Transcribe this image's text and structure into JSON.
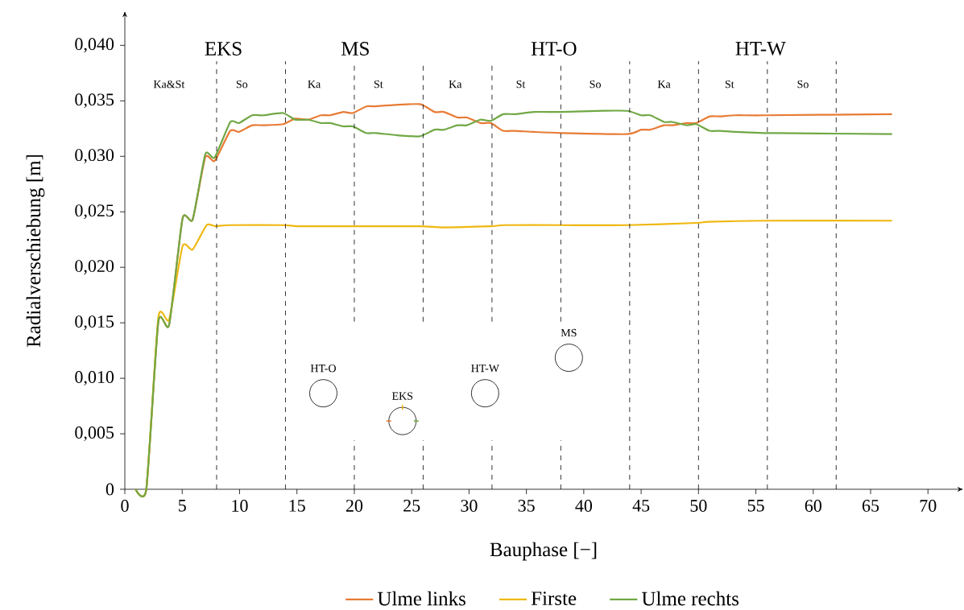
{
  "chart_data": {
    "type": "line",
    "xlabel": "Bauphase [−]",
    "ylabel": "Radialverschiebung [m]",
    "xlim": [
      0,
      73
    ],
    "ylim": [
      0,
      0.043
    ],
    "xticks": [
      0,
      5,
      10,
      15,
      20,
      25,
      30,
      35,
      40,
      45,
      50,
      55,
      60,
      65,
      70
    ],
    "yticks": [
      0,
      {
        "value": 0.005,
        "label": "0,005"
      },
      {
        "value": 0.01,
        "label": "0,010"
      },
      {
        "value": 0.015,
        "label": "0,015"
      },
      {
        "value": 0.02,
        "label": "0,020"
      },
      {
        "value": 0.025,
        "label": "0,025"
      },
      {
        "value": 0.03,
        "label": "0,030"
      },
      {
        "value": 0.035,
        "label": "0,035"
      },
      {
        "value": 0.04,
        "label": "0,040"
      }
    ],
    "legend": "bottom",
    "line_style": "solid",
    "marker": "none",
    "series": [
      {
        "name": "Ulme links",
        "color": "#e87b35",
        "x": [
          0.93,
          1.87,
          2.92,
          3.86,
          5.03,
          5.91,
          7.01,
          7.83,
          9.19,
          9.94,
          11.1,
          12.04,
          13.8,
          14.85,
          16.0,
          17.08,
          17.88,
          19.05,
          19.87,
          21.04,
          21.86,
          23.0,
          25.7,
          27.0,
          27.8,
          29.0,
          29.8,
          31.0,
          31.9,
          32.97,
          34.0,
          35.65,
          38.0,
          43.8,
          45.0,
          45.8,
          47.0,
          47.7,
          48.98,
          49.8,
          50.97,
          51.9,
          53.2,
          55.76,
          66.87
        ],
        "values": [
          0,
          0,
          0.0151,
          0.0148,
          0.0244,
          0.0243,
          0.0299,
          0.0296,
          0.0323,
          0.0322,
          0.0328,
          0.0328,
          0.0329,
          0.0334,
          0.0333,
          0.0337,
          0.0337,
          0.034,
          0.0339,
          0.0345,
          0.0345,
          0.0346,
          0.0347,
          0.034,
          0.034,
          0.0335,
          0.0335,
          0.033,
          0.033,
          0.0323,
          0.0323,
          0.0322,
          0.0321,
          0.032,
          0.0324,
          0.0324,
          0.0328,
          0.0328,
          0.033,
          0.033,
          0.0336,
          0.0336,
          0.0337,
          0.0337,
          0.0338
        ]
      },
      {
        "name": "Firste",
        "color": "#efb810",
        "x": [
          0.93,
          1.87,
          2.92,
          3.86,
          5.03,
          5.91,
          7.13,
          7.88,
          9.19,
          13.8,
          15.1,
          19.87,
          25.7,
          27.7,
          31.9,
          33.1,
          38.0,
          43.8,
          49.8,
          50.85,
          55.76,
          66.87
        ],
        "values": [
          0,
          0,
          0.0155,
          0.0153,
          0.0219,
          0.0216,
          0.0238,
          0.0237,
          0.0238,
          0.0238,
          0.0237,
          0.0237,
          0.0237,
          0.0236,
          0.0237,
          0.0238,
          0.0238,
          0.0238,
          0.024,
          0.0241,
          0.0242,
          0.0242
        ]
      },
      {
        "name": "Ulme rechts",
        "color": "#70a845",
        "x": [
          0.93,
          1.87,
          2.92,
          3.86,
          5.03,
          5.91,
          7.01,
          7.83,
          9.19,
          9.94,
          11.1,
          12.04,
          13.8,
          14.85,
          16.0,
          17.08,
          17.88,
          19.05,
          19.87,
          21.04,
          21.86,
          23.72,
          25.7,
          27.0,
          27.8,
          29.0,
          29.8,
          31.0,
          31.9,
          32.97,
          34.0,
          35.65,
          38.0,
          41.7,
          43.8,
          45.0,
          45.8,
          47.0,
          47.7,
          48.98,
          49.8,
          50.97,
          51.9,
          53.2,
          55.76,
          56.9,
          66.87
        ],
        "values": [
          0,
          0,
          0.0151,
          0.0148,
          0.0244,
          0.0243,
          0.0302,
          0.0299,
          0.0331,
          0.033,
          0.0337,
          0.0337,
          0.0339,
          0.0333,
          0.0333,
          0.033,
          0.033,
          0.0327,
          0.0327,
          0.0321,
          0.0321,
          0.0319,
          0.0318,
          0.0324,
          0.0324,
          0.0328,
          0.0328,
          0.0333,
          0.0332,
          0.0338,
          0.0338,
          0.034,
          0.034,
          0.0341,
          0.0341,
          0.0337,
          0.0337,
          0.0331,
          0.0331,
          0.0328,
          0.0329,
          0.0323,
          0.0323,
          0.0322,
          0.0321,
          0.0321,
          0.032
        ]
      }
    ],
    "ref_lines": [
      {
        "axis": "x",
        "value": 8,
        "color": "#000000",
        "line_style": "dashed"
      },
      {
        "axis": "x",
        "value": 14,
        "color": "#000000",
        "line_style": "dashed"
      },
      {
        "axis": "x",
        "value": 20,
        "color": "#000000",
        "line_style": "dashed"
      },
      {
        "axis": "x",
        "value": 26,
        "color": "#000000",
        "line_style": "dashed"
      },
      {
        "axis": "x",
        "value": 32,
        "color": "#000000",
        "line_style": "dashed"
      },
      {
        "axis": "x",
        "value": 38,
        "color": "#000000",
        "line_style": "dashed"
      },
      {
        "axis": "x",
        "value": 44,
        "color": "#000000",
        "line_style": "dashed"
      },
      {
        "axis": "x",
        "value": 50,
        "color": "#000000",
        "line_style": "dashed"
      },
      {
        "axis": "x",
        "value": 56,
        "color": "#000000",
        "line_style": "dashed"
      },
      {
        "axis": "x",
        "value": 62,
        "color": "#000000",
        "line_style": "dashed"
      }
    ],
    "annotations": [
      "EKS",
      "MS",
      "HT-O",
      "HT-W",
      "Ka&St",
      "So",
      "Ka",
      "St",
      "Ka",
      "St",
      "So",
      "Ka",
      "St",
      "So",
      "HT-O",
      "EKS",
      "HT-W",
      "MS"
    ]
  }
}
